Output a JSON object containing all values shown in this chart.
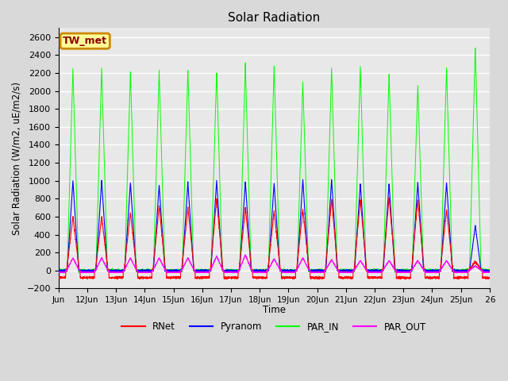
{
  "title": "Solar Radiation",
  "ylabel": "Solar Radiation (W/m2, uE/m2/s)",
  "xlabel": "Time",
  "ylim": [
    -200,
    2700
  ],
  "yticks": [
    -200,
    0,
    200,
    400,
    600,
    800,
    1000,
    1200,
    1400,
    1600,
    1800,
    2000,
    2200,
    2400,
    2600
  ],
  "outer_bg": "#d9d9d9",
  "plot_bg": "#e8e8e8",
  "grid_color": "white",
  "annotation_label": "TW_met",
  "annotation_box_facecolor": "#ffff99",
  "annotation_box_edgecolor": "#cc8800",
  "colors": {
    "RNet": "red",
    "Pyranom": "blue",
    "PAR_IN": "#00ff00",
    "PAR_OUT": "magenta"
  },
  "legend_labels": [
    "RNet",
    "Pyranom",
    "PAR_IN",
    "PAR_OUT"
  ],
  "n_days": 15,
  "start_day": 11,
  "points_per_day": 288,
  "rnet_peaks": [
    600,
    600,
    650,
    720,
    700,
    800,
    700,
    660,
    680,
    790,
    790,
    810,
    790,
    680,
    100
  ],
  "pyranom_peaks": [
    1000,
    1000,
    980,
    950,
    980,
    1000,
    990,
    970,
    1010,
    1010,
    970,
    970,
    980,
    980,
    500
  ],
  "par_in_peaks": [
    2250,
    2250,
    2220,
    2220,
    2240,
    2220,
    2300,
    2270,
    2100,
    2250,
    2270,
    2200,
    2060,
    2250,
    2500
  ],
  "par_out_peaks": [
    140,
    140,
    140,
    140,
    140,
    160,
    175,
    130,
    140,
    120,
    110,
    110,
    110,
    110,
    50
  ],
  "rnet_night": -80,
  "par_out_night": -20,
  "figsize": [
    6.4,
    4.8
  ],
  "dpi": 100
}
